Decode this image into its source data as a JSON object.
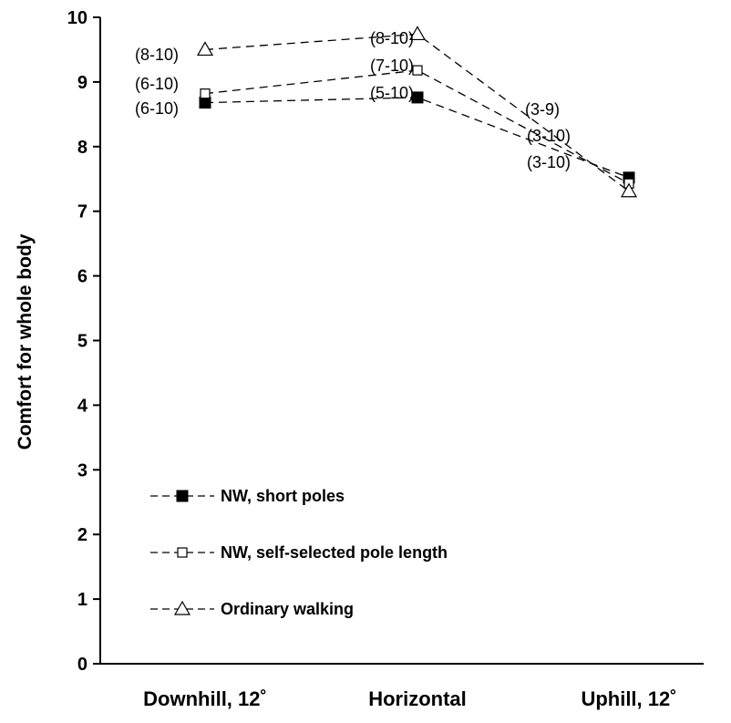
{
  "chart_data": {
    "type": "line",
    "categories": [
      "Downhill, 12˚",
      "Horizontal",
      "Uphill, 12˚"
    ],
    "ylabel": "Comfort for whole body",
    "xlabel": "",
    "ylim": [
      0,
      10
    ],
    "yticks": [
      "0",
      "1",
      "2",
      "3",
      "4",
      "5",
      "6",
      "7",
      "8",
      "9",
      "10"
    ],
    "grid": false,
    "legend_position": "bottom-left",
    "series": [
      {
        "name": "NW, short poles",
        "marker": "filled-square",
        "values": [
          8.68,
          8.76,
          7.52
        ],
        "ranges": [
          "(6-10)",
          "(5-10)",
          "(3-10)"
        ]
      },
      {
        "name": "NW, self-selected pole length",
        "marker": "open-square",
        "values": [
          8.82,
          9.18,
          7.43
        ],
        "ranges": [
          "(6-10)",
          "(7-10)",
          "(3-10)"
        ]
      },
      {
        "name": "Ordinary walking",
        "marker": "open-triangle",
        "values": [
          9.5,
          9.74,
          7.31
        ],
        "ranges": [
          "(8-10)",
          "(8-10)",
          "(3-9)"
        ]
      }
    ]
  }
}
